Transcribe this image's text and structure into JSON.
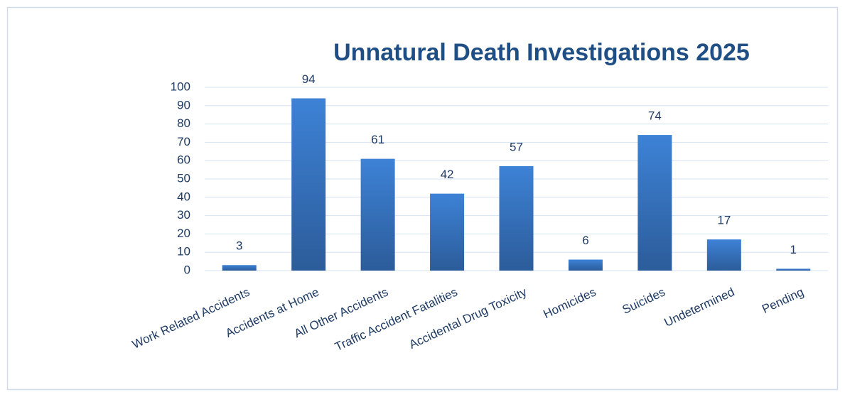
{
  "chart_data": {
    "type": "bar",
    "title": "Unnatural Death Investigations 2025",
    "categories": [
      "Work Related Accidents",
      "Accidents at Home",
      "All Other Accidents",
      "Traffic Accident Fatalities",
      "Accidental Drug Toxicity",
      "Homicides",
      "Suicides",
      "Undetermined",
      "Pending"
    ],
    "values": [
      3,
      94,
      61,
      42,
      57,
      6,
      74,
      17,
      1
    ],
    "color": "#3a7bcc",
    "ylim": [
      0,
      100
    ],
    "yticks": [
      0,
      10,
      20,
      30,
      40,
      50,
      60,
      70,
      80,
      90,
      100
    ],
    "grid": true
  }
}
